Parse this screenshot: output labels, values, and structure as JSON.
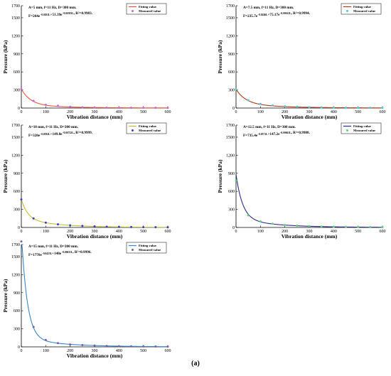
{
  "caption": "(a)",
  "chart_data": [
    {
      "type": "line",
      "annotation": {
        "line1": "A=5 mm, f=11 Hz, D=300 mm.",
        "line2": "F=264e^(−0.0261L)+51.39e^(−0.00581L), R²=0.9983."
      },
      "xlabel": "Vibration distance (mm)",
      "ylabel": "Pressure (kPa)",
      "xlim": [
        0,
        600
      ],
      "ylim": [
        0,
        1700
      ],
      "xticks": [
        0,
        100,
        200,
        300,
        400,
        500,
        600
      ],
      "yticks": [
        0,
        300,
        600,
        900,
        1200,
        1500,
        1700
      ],
      "legend": {
        "position": "top-right",
        "fitted": "Fitting value",
        "measured": "Measured value"
      },
      "fit_color": "#e8563a",
      "marker_color": "#c06bd8",
      "fit": {
        "a1": 264,
        "b1": 0.0261,
        "a2": 51.39,
        "b2": 0.00581
      },
      "series": [
        {
          "name": "Measured value",
          "x": [
            0,
            50,
            100,
            150,
            200,
            250,
            300,
            350,
            400,
            450,
            500,
            550,
            600
          ],
          "y": [
            315,
            120,
            55,
            38,
            20,
            12,
            8,
            6,
            5,
            4,
            4,
            4,
            3
          ]
        }
      ]
    },
    {
      "type": "line",
      "annotation": {
        "line1": "A=7.5 mm, f=11 Hz, D=300 mm.",
        "line2": "F=235.7e^(−0.0246L)+75.17e^(−0.00612L), R²=0.9994."
      },
      "xlabel": "Vibration distance (mm)",
      "ylabel": "Pressure (kPa)",
      "xlim": [
        0,
        600
      ],
      "ylim": [
        0,
        1700
      ],
      "xticks": [
        0,
        100,
        200,
        300,
        400,
        500,
        600
      ],
      "yticks": [
        0,
        300,
        600,
        900,
        1200,
        1500,
        1700
      ],
      "legend": {
        "position": "top-right",
        "fitted": "Fitting value",
        "measured": "Measured value"
      },
      "fit_color": "#b03a18",
      "marker_color": "#4dc9d6",
      "fit": {
        "a1": 235.7,
        "b1": 0.0246,
        "a2": 75.17,
        "b2": 0.00612
      },
      "series": [
        {
          "name": "Measured value",
          "x": [
            0,
            50,
            100,
            150,
            200,
            250,
            300,
            350,
            400,
            450,
            500,
            550,
            600
          ],
          "y": [
            310,
            130,
            70,
            45,
            30,
            20,
            14,
            10,
            8,
            6,
            5,
            5,
            4
          ]
        }
      ]
    },
    {
      "type": "line",
      "annotation": {
        "line1": "A=10 mm, f=11 Hz, D=300 mm.",
        "line2": "F=320e^(−0.0392L)+149.8e^(−0.00722L), R²=0.9999."
      },
      "xlabel": "Vibration distance (mm)",
      "ylabel": "Pressure (kPa)",
      "xlim": [
        0,
        600
      ],
      "ylim": [
        0,
        1700
      ],
      "xticks": [
        0,
        100,
        200,
        300,
        400,
        500,
        600
      ],
      "yticks": [
        0,
        300,
        600,
        900,
        1200,
        1500,
        1700
      ],
      "legend": {
        "position": "top-right",
        "fitted": "Fitting value",
        "measured": "Measured value"
      },
      "fit_color": "#c0bf3a",
      "marker_color": "#3c3cc8",
      "fit": {
        "a1": 320,
        "b1": 0.0392,
        "a2": 149.8,
        "b2": 0.00722
      },
      "series": [
        {
          "name": "Measured value",
          "x": [
            0,
            50,
            100,
            150,
            200,
            250,
            300,
            350,
            400,
            450,
            500,
            550,
            600
          ],
          "y": [
            465,
            150,
            80,
            52,
            35,
            25,
            17,
            12,
            9,
            7,
            5,
            4,
            3
          ]
        }
      ]
    },
    {
      "type": "line",
      "annotation": {
        "line1": "A=12.5 mm, f=11 Hz, D=300 mm.",
        "line2": "F=735.4e^(−0.0371L)+147.2e^(−0.00661L), R²=0.9988."
      },
      "xlabel": "Vibration distance (mm)",
      "ylabel": "Pressure (kPa)",
      "xlim": [
        0,
        600
      ],
      "ylim": [
        0,
        1700
      ],
      "xticks": [
        0,
        100,
        200,
        300,
        400,
        500,
        600
      ],
      "yticks": [
        0,
        300,
        600,
        900,
        1200,
        1500,
        1700
      ],
      "legend": {
        "position": "top-right",
        "fitted": "Fitting value",
        "measured": "Measured value"
      },
      "fit_color": "#2c2a8c",
      "marker_color": "#58d07a",
      "fit": {
        "a1": 735.4,
        "b1": 0.0371,
        "a2": 147.2,
        "b2": 0.00661
      },
      "series": [
        {
          "name": "Measured value",
          "x": [
            0,
            50,
            100,
            150,
            200,
            250,
            300,
            350,
            400,
            450,
            500,
            550,
            600
          ],
          "y": [
            780,
            200,
            100,
            62,
            40,
            30,
            20,
            15,
            11,
            9,
            7,
            6,
            5
          ]
        }
      ]
    },
    {
      "type": "line",
      "annotation": {
        "line1": "A=15 mm, f=11 Hz, D=300 mm.",
        "line2": "F=1770e^(−0.0425L)+148e^(−0.00631L), R²=0.9996."
      },
      "xlabel": "Vibration distance (mm)",
      "ylabel": "Pressure (kPa)",
      "xlim": [
        0,
        600
      ],
      "ylim": [
        0,
        1700
      ],
      "xticks": [
        0,
        100,
        200,
        300,
        400,
        500,
        600
      ],
      "yticks": [
        0,
        300,
        600,
        900,
        1200,
        1500,
        1700
      ],
      "legend": {
        "position": "top-right",
        "fitted": "Fitting value",
        "measured": "Measured value"
      },
      "fit_color": "#3a86c6",
      "marker_color": "#7a5fa8",
      "fit": {
        "a1": 1770,
        "b1": 0.0425,
        "a2": 148,
        "b2": 0.00631
      },
      "series": [
        {
          "name": "Measured value",
          "x": [
            0,
            50,
            100,
            150,
            200,
            250,
            300,
            350,
            400,
            450,
            500,
            550,
            600
          ],
          "y": [
            1750,
            330,
            115,
            62,
            40,
            30,
            22,
            15,
            11,
            9,
            7,
            6,
            5
          ]
        }
      ]
    }
  ]
}
